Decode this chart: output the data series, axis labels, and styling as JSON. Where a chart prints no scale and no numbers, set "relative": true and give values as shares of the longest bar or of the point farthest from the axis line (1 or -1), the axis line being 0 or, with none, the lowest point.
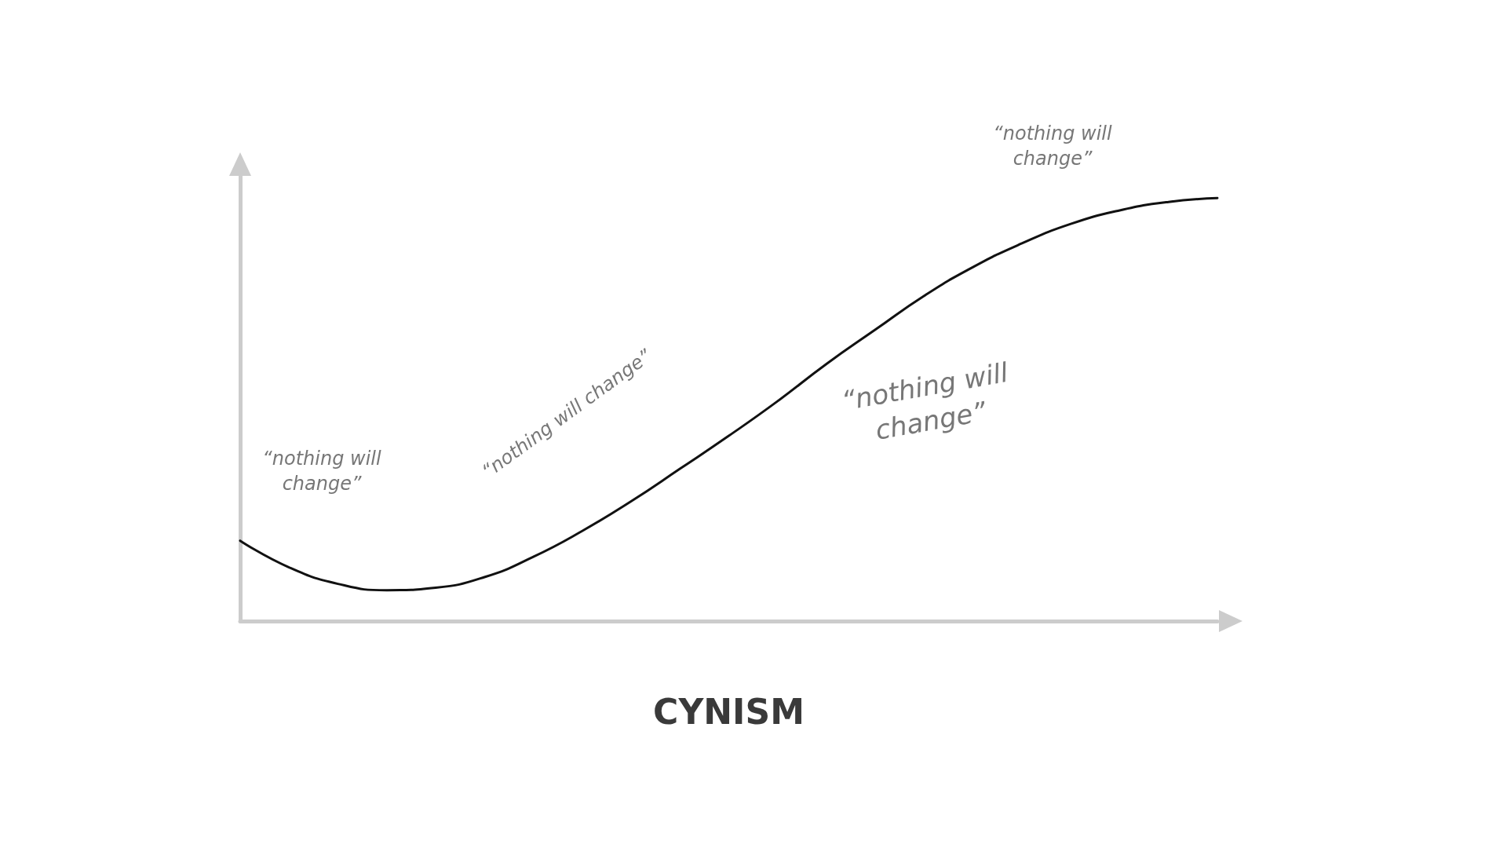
{
  "chart_data": {
    "type": "line",
    "relative": true,
    "xlabel": "CYNISM",
    "categories": [
      null,
      null,
      null,
      null,
      null,
      null,
      null,
      null,
      null,
      null,
      null,
      null,
      null,
      null,
      null,
      null,
      null,
      null,
      null,
      null,
      null
    ],
    "series": [
      {
        "color": "#111111",
        "values": [
          0.19,
          0.127,
          0.088,
          0.073,
          0.079,
          0.104,
          0.152,
          0.213,
          0.283,
          0.36,
          0.438,
          0.52,
          0.608,
          0.689,
          0.769,
          0.837,
          0.893,
          0.939,
          0.971,
          0.991,
          1
        ]
      }
    ],
    "marker": "none",
    "line_style": "solid",
    "annotations": [
      "“nothing will\nchange”",
      "“nothing will change”",
      "“nothing will\nchange”",
      "“nothing will\nchange”"
    ]
  }
}
